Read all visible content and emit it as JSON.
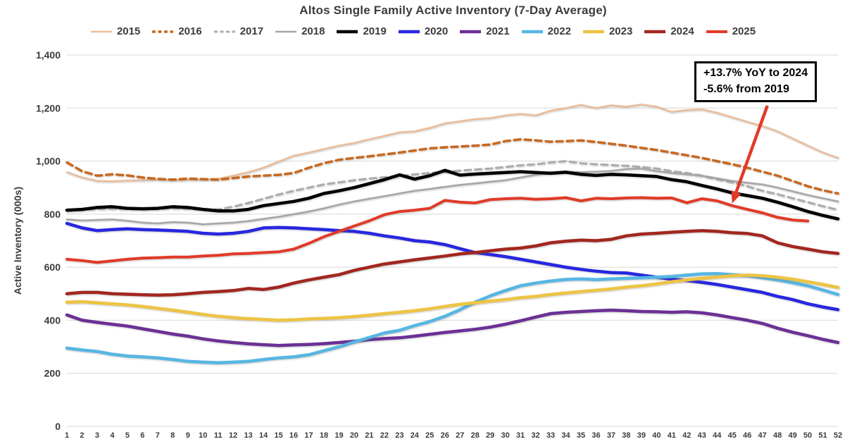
{
  "annotation": {
    "line1": "+13.7% YoY to 2024",
    "line2": "-5.6% from 2019"
  },
  "chart_data": {
    "type": "line",
    "title": "Altos Single Family Active Inventory (7-Day Average)",
    "xlabel": "",
    "ylabel": "Active Inventory (000s)",
    "x_range": [
      1,
      52
    ],
    "ylim": [
      0,
      1400
    ],
    "ytick_step": 200,
    "grid": "horizontal",
    "legend_position": "top",
    "arrow": {
      "points_to_week": 45,
      "points_to_value": 830,
      "color": "#e23a28"
    },
    "series": [
      {
        "name": "2015",
        "color": "#ebbd99",
        "style": "solid",
        "width": 2.5,
        "values": [
          958,
          938,
          925,
          924,
          926,
          928,
          930,
          928,
          930,
          930,
          933,
          945,
          958,
          975,
          998,
          1020,
          1032,
          1045,
          1058,
          1068,
          1082,
          1095,
          1108,
          1112,
          1125,
          1142,
          1150,
          1158,
          1162,
          1172,
          1178,
          1172,
          1190,
          1200,
          1212,
          1200,
          1210,
          1205,
          1213,
          1205,
          1185,
          1192,
          1195,
          1182,
          1165,
          1148,
          1132,
          1112,
          1085,
          1058,
          1032,
          1012
        ]
      },
      {
        "name": "2016",
        "color": "#c8681f",
        "style": "dashed",
        "width": 3.5,
        "values": [
          995,
          962,
          945,
          950,
          946,
          938,
          933,
          930,
          934,
          932,
          930,
          936,
          942,
          945,
          948,
          955,
          975,
          992,
          1005,
          1012,
          1018,
          1025,
          1032,
          1040,
          1048,
          1052,
          1055,
          1058,
          1062,
          1075,
          1082,
          1078,
          1073,
          1075,
          1078,
          1072,
          1065,
          1058,
          1050,
          1042,
          1032,
          1022,
          1012,
          1000,
          988,
          975,
          960,
          945,
          925,
          905,
          890,
          878
        ]
      },
      {
        "name": "2017",
        "color": "#acacac",
        "style": "dashed",
        "width": 3,
        "values": [
          815,
          818,
          820,
          821,
          820,
          819,
          821,
          823,
          821,
          819,
          818,
          828,
          842,
          858,
          874,
          888,
          900,
          912,
          920,
          928,
          934,
          939,
          944,
          950,
          955,
          960,
          964,
          968,
          972,
          978,
          984,
          988,
          995,
          1000,
          992,
          988,
          985,
          982,
          978,
          972,
          962,
          955,
          945,
          932,
          920,
          905,
          888,
          875,
          860,
          845,
          830,
          816
        ]
      },
      {
        "name": "2018",
        "color": "#a6a6a6",
        "style": "solid",
        "width": 2.5,
        "values": [
          780,
          776,
          778,
          780,
          775,
          768,
          765,
          770,
          768,
          762,
          765,
          768,
          774,
          782,
          790,
          800,
          810,
          822,
          836,
          848,
          858,
          868,
          878,
          888,
          895,
          903,
          910,
          916,
          922,
          928,
          938,
          948,
          958,
          960,
          958,
          960,
          963,
          970,
          972,
          962,
          955,
          950,
          945,
          935,
          925,
          918,
          912,
          900,
          886,
          872,
          860,
          848
        ]
      },
      {
        "name": "2019",
        "color": "#000000",
        "style": "solid",
        "width": 4.5,
        "values": [
          815,
          818,
          825,
          828,
          822,
          820,
          822,
          828,
          825,
          818,
          812,
          812,
          818,
          832,
          840,
          848,
          860,
          878,
          888,
          900,
          915,
          930,
          948,
          932,
          945,
          965,
          947,
          951,
          954,
          957,
          960,
          957,
          954,
          958,
          950,
          946,
          950,
          948,
          945,
          942,
          930,
          922,
          908,
          895,
          880,
          870,
          860,
          845,
          828,
          810,
          795,
          782
        ]
      },
      {
        "name": "2020",
        "color": "#2727e0",
        "style": "solid",
        "width": 4.5,
        "values": [
          765,
          748,
          738,
          742,
          745,
          742,
          740,
          738,
          735,
          728,
          725,
          728,
          735,
          748,
          750,
          748,
          745,
          742,
          738,
          735,
          728,
          718,
          710,
          700,
          695,
          685,
          670,
          655,
          648,
          640,
          630,
          620,
          610,
          600,
          592,
          585,
          580,
          578,
          570,
          562,
          555,
          550,
          543,
          535,
          525,
          515,
          505,
          490,
          478,
          462,
          450,
          440
        ]
      },
      {
        "name": "2021",
        "color": "#6b3095",
        "style": "solid",
        "width": 4.5,
        "values": [
          420,
          400,
          392,
          385,
          378,
          368,
          358,
          348,
          340,
          330,
          322,
          316,
          311,
          308,
          305,
          307,
          309,
          312,
          316,
          321,
          327,
          331,
          334,
          340,
          347,
          354,
          360,
          366,
          374,
          385,
          398,
          412,
          425,
          430,
          433,
          436,
          438,
          436,
          433,
          432,
          430,
          432,
          428,
          420,
          410,
          400,
          388,
          370,
          355,
          342,
          328,
          316
        ]
      },
      {
        "name": "2022",
        "color": "#56b6e3",
        "style": "solid",
        "width": 4.5,
        "values": [
          295,
          288,
          282,
          272,
          265,
          262,
          258,
          252,
          245,
          242,
          240,
          242,
          245,
          252,
          258,
          262,
          270,
          285,
          300,
          318,
          335,
          352,
          362,
          380,
          395,
          415,
          440,
          468,
          492,
          512,
          530,
          540,
          548,
          554,
          556,
          553,
          556,
          558,
          560,
          562,
          565,
          570,
          575,
          576,
          572,
          568,
          560,
          552,
          542,
          530,
          514,
          497
        ]
      },
      {
        "name": "2023",
        "color": "#edc443",
        "style": "solid",
        "width": 4.5,
        "values": [
          468,
          470,
          466,
          462,
          458,
          452,
          445,
          438,
          430,
          422,
          415,
          410,
          406,
          403,
          400,
          402,
          405,
          407,
          410,
          414,
          419,
          425,
          430,
          436,
          443,
          452,
          460,
          466,
          472,
          478,
          485,
          490,
          497,
          503,
          508,
          513,
          518,
          525,
          530,
          537,
          545,
          552,
          558,
          563,
          568,
          570,
          568,
          562,
          555,
          545,
          535,
          524
        ]
      },
      {
        "name": "2024",
        "color": "#a2271f",
        "style": "solid",
        "width": 4.5,
        "values": [
          500,
          505,
          505,
          500,
          498,
          496,
          495,
          496,
          500,
          505,
          508,
          512,
          520,
          516,
          525,
          540,
          552,
          562,
          572,
          588,
          600,
          612,
          620,
          628,
          635,
          642,
          650,
          655,
          662,
          668,
          672,
          680,
          692,
          698,
          702,
          700,
          705,
          718,
          725,
          728,
          732,
          735,
          738,
          735,
          730,
          727,
          718,
          692,
          678,
          668,
          658,
          652
        ]
      },
      {
        "name": "2025",
        "color": "#e23a28",
        "style": "solid",
        "width": 4,
        "values": [
          630,
          625,
          618,
          624,
          630,
          634,
          636,
          638,
          638,
          642,
          645,
          650,
          652,
          655,
          658,
          668,
          690,
          715,
          735,
          755,
          775,
          798,
          810,
          815,
          822,
          852,
          845,
          842,
          855,
          858,
          860,
          856,
          858,
          862,
          850,
          860,
          858,
          861,
          862,
          860,
          861,
          843,
          858,
          850,
          832,
          818,
          805,
          788,
          778,
          774
        ]
      }
    ]
  }
}
